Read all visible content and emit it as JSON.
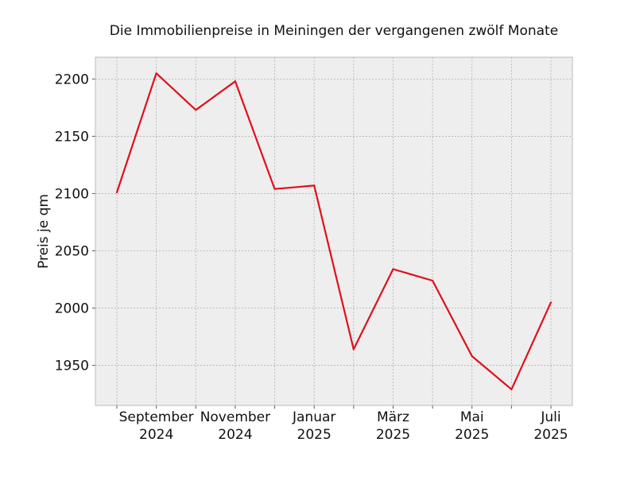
{
  "chart_data": {
    "type": "line",
    "title": "Die Immobilienpreise in Meiningen der vergangenen zwölf Monate",
    "xlabel": "",
    "ylabel": "Preis je qm",
    "x": [
      "2024-08",
      "2024-09",
      "2024-10",
      "2024-11",
      "2024-12",
      "2025-01",
      "2025-02",
      "2025-03",
      "2025-04",
      "2025-05",
      "2025-06",
      "2025-07"
    ],
    "series": [
      {
        "values": [
          2101,
          2205,
          2173,
          2198,
          2104,
          2107,
          1964,
          2034,
          2024,
          1958,
          1929,
          2005
        ]
      }
    ],
    "x_tick_labels": [
      {
        "x": "2024-09",
        "lines": [
          "September",
          "2024"
        ]
      },
      {
        "x": "2024-11",
        "lines": [
          "November",
          "2024"
        ]
      },
      {
        "x": "2025-01",
        "lines": [
          "Januar",
          "2025"
        ]
      },
      {
        "x": "2025-03",
        "lines": [
          "März",
          "2025"
        ]
      },
      {
        "x": "2025-05",
        "lines": [
          "Mai",
          "2025"
        ]
      },
      {
        "x": "2025-07",
        "lines": [
          "Juli",
          "2025"
        ]
      }
    ],
    "y_ticks": [
      1950,
      2000,
      2050,
      2100,
      2150,
      2200
    ],
    "ylim": [
      1915,
      2219
    ],
    "grid": true,
    "colors": {
      "line": "#e0101a",
      "plot_background": "#eeeeee",
      "grid": "#b0b0b0"
    }
  }
}
